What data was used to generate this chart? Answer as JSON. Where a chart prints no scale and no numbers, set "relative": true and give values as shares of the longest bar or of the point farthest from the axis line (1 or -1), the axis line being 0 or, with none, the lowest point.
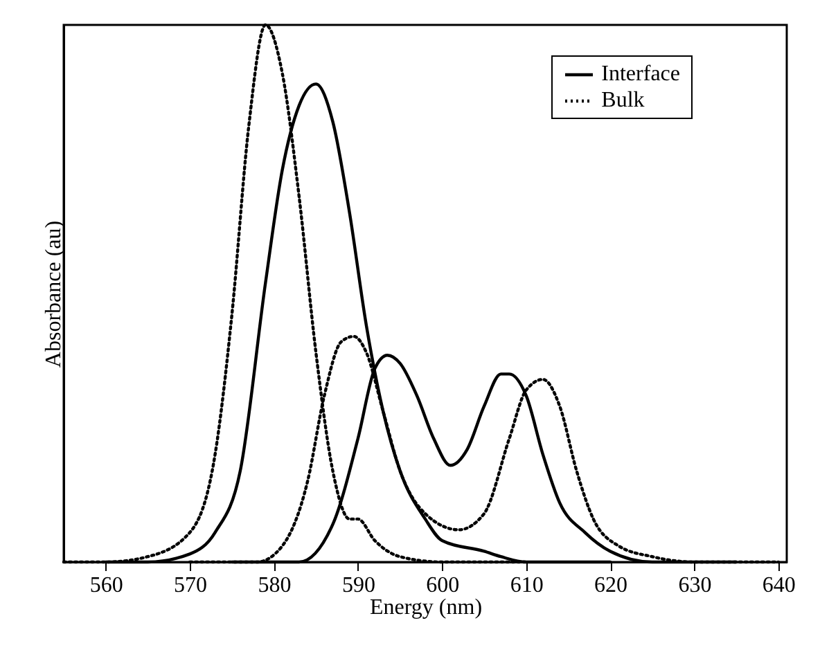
{
  "chart_data": {
    "type": "line",
    "xlabel": "Energy (nm)",
    "ylabel": "Absorbance (au)",
    "relative": true,
    "xlim": [
      555,
      641
    ],
    "xticks": [
      560,
      570,
      580,
      590,
      600,
      610,
      620,
      630,
      640
    ],
    "grid": false,
    "legend": "top right",
    "marker": "none",
    "series": [
      {
        "name": "Interface",
        "color": "#000000",
        "line_style": "solid",
        "x": [
          560,
          565,
          570,
          573,
          576,
          579,
          581,
          583,
          585,
          587,
          589,
          591,
          593,
          595,
          598,
          600,
          605,
          607,
          610,
          620
        ],
        "values": [
          0,
          0,
          0.015,
          0.055,
          0.17,
          0.52,
          0.73,
          0.85,
          0.89,
          0.82,
          0.65,
          0.44,
          0.28,
          0.17,
          0.08,
          0.04,
          0.02,
          0.01,
          0,
          0
        ]
      },
      {
        "color": "#000000",
        "line_style": "solid",
        "x": [
          575,
          583,
          587,
          590,
          592,
          593.5,
          595,
          597,
          599,
          601,
          603,
          605,
          607,
          608,
          610,
          612,
          614,
          617,
          620,
          625,
          635
        ],
        "values": [
          0,
          0,
          0.07,
          0.23,
          0.36,
          0.385,
          0.37,
          0.31,
          0.23,
          0.18,
          0.21,
          0.29,
          0.35,
          0.35,
          0.31,
          0.2,
          0.11,
          0.055,
          0.02,
          0,
          0
        ]
      },
      {
        "name": "Bulk",
        "color": "#000000",
        "line_style": "dotted",
        "x": [
          555,
          560,
          565,
          570,
          573,
          575,
          577,
          579,
          581,
          583,
          585,
          587,
          589,
          590,
          592,
          595,
          600,
          610
        ],
        "values": [
          0,
          0,
          0.01,
          0.055,
          0.2,
          0.46,
          0.81,
          1,
          0.91,
          0.68,
          0.39,
          0.17,
          0.08,
          0.08,
          0.04,
          0.01,
          0,
          0
        ]
      },
      {
        "color": "#000000",
        "line_style": "dotted",
        "x": [
          570,
          578,
          581,
          584,
          586,
          588,
          589.5,
          591,
          593,
          595,
          598,
          602,
          605,
          608,
          610,
          612,
          614,
          616,
          618,
          621,
          625,
          630,
          640
        ],
        "values": [
          0,
          0,
          0.03,
          0.15,
          0.31,
          0.41,
          0.42,
          0.39,
          0.28,
          0.17,
          0.09,
          0.06,
          0.09,
          0.23,
          0.32,
          0.34,
          0.29,
          0.17,
          0.08,
          0.03,
          0.01,
          0,
          0
        ]
      }
    ]
  }
}
